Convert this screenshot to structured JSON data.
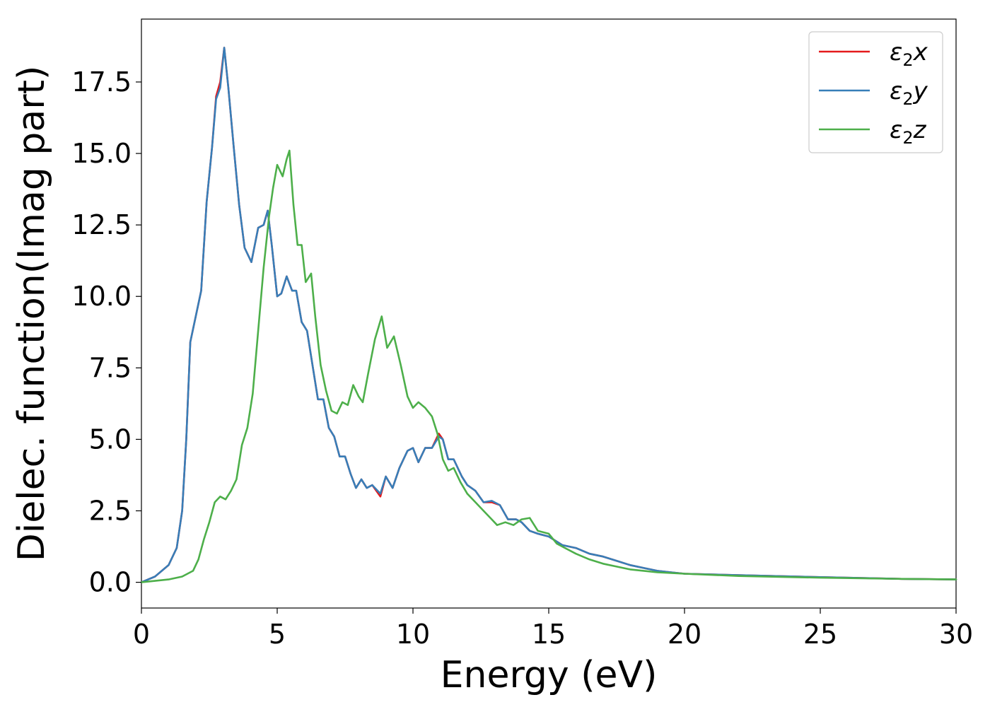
{
  "chart_data": {
    "type": "line",
    "title": "",
    "xlabel": "Energy (eV)",
    "ylabel": "Dielec. function(Imag part)",
    "xlim": [
      0,
      30
    ],
    "ylim": [
      -0.9,
      19.7
    ],
    "x_ticks": [
      "0",
      "5",
      "10",
      "15",
      "20",
      "25",
      "30"
    ],
    "y_ticks": [
      "0.0",
      "2.5",
      "5.0",
      "7.5",
      "10.0",
      "12.5",
      "15.0",
      "17.5"
    ],
    "grid": false,
    "legend_position": "top-right",
    "series": [
      {
        "name": "ε₂x",
        "legend_base": "ε",
        "legend_sub": "2",
        "legend_axis": "x",
        "color": "#e41a1c",
        "points": [
          [
            0,
            0
          ],
          [
            0.5,
            0.2
          ],
          [
            1.0,
            0.6
          ],
          [
            1.3,
            1.2
          ],
          [
            1.5,
            2.5
          ],
          [
            1.65,
            5.0
          ],
          [
            1.8,
            8.4
          ],
          [
            2.0,
            9.3
          ],
          [
            2.2,
            10.2
          ],
          [
            2.4,
            13.3
          ],
          [
            2.6,
            15.2
          ],
          [
            2.75,
            17.0
          ],
          [
            2.9,
            17.5
          ],
          [
            3.05,
            18.7
          ],
          [
            3.2,
            17.3
          ],
          [
            3.4,
            15.2
          ],
          [
            3.6,
            13.2
          ],
          [
            3.8,
            11.7
          ],
          [
            4.05,
            11.2
          ],
          [
            4.3,
            12.4
          ],
          [
            4.5,
            12.5
          ],
          [
            4.65,
            13.0
          ],
          [
            4.8,
            11.8
          ],
          [
            5.0,
            10.0
          ],
          [
            5.15,
            10.1
          ],
          [
            5.35,
            10.7
          ],
          [
            5.55,
            10.2
          ],
          [
            5.7,
            10.2
          ],
          [
            5.9,
            9.1
          ],
          [
            6.1,
            8.8
          ],
          [
            6.3,
            7.6
          ],
          [
            6.5,
            6.4
          ],
          [
            6.7,
            6.4
          ],
          [
            6.9,
            5.4
          ],
          [
            7.1,
            5.1
          ],
          [
            7.3,
            4.4
          ],
          [
            7.5,
            4.4
          ],
          [
            7.7,
            3.8
          ],
          [
            7.9,
            3.3
          ],
          [
            8.1,
            3.6
          ],
          [
            8.3,
            3.3
          ],
          [
            8.5,
            3.4
          ],
          [
            8.8,
            3.0
          ],
          [
            9.0,
            3.7
          ],
          [
            9.25,
            3.3
          ],
          [
            9.5,
            4.0
          ],
          [
            9.8,
            4.6
          ],
          [
            10.0,
            4.7
          ],
          [
            10.2,
            4.2
          ],
          [
            10.45,
            4.7
          ],
          [
            10.7,
            4.7
          ],
          [
            10.95,
            5.2
          ],
          [
            11.1,
            5.0
          ],
          [
            11.3,
            4.3
          ],
          [
            11.5,
            4.3
          ],
          [
            11.8,
            3.7
          ],
          [
            12.0,
            3.4
          ],
          [
            12.3,
            3.2
          ],
          [
            12.6,
            2.8
          ],
          [
            12.9,
            2.8
          ],
          [
            13.2,
            2.7
          ],
          [
            13.5,
            2.2
          ],
          [
            13.8,
            2.2
          ],
          [
            14.0,
            2.1
          ],
          [
            14.3,
            1.8
          ],
          [
            14.6,
            1.7
          ],
          [
            15.0,
            1.6
          ],
          [
            15.5,
            1.3
          ],
          [
            16.0,
            1.2
          ],
          [
            16.5,
            1.0
          ],
          [
            17.0,
            0.9
          ],
          [
            17.5,
            0.75
          ],
          [
            18.0,
            0.6
          ],
          [
            18.5,
            0.5
          ],
          [
            19.0,
            0.4
          ],
          [
            19.5,
            0.35
          ],
          [
            20,
            0.3
          ],
          [
            22,
            0.25
          ],
          [
            25,
            0.18
          ],
          [
            28,
            0.12
          ],
          [
            30,
            0.1
          ]
        ]
      },
      {
        "name": "ε₂y",
        "legend_base": "ε",
        "legend_sub": "2",
        "legend_axis": "y",
        "color": "#377eb8",
        "points": [
          [
            0,
            0
          ],
          [
            0.5,
            0.2
          ],
          [
            1.0,
            0.6
          ],
          [
            1.3,
            1.2
          ],
          [
            1.5,
            2.5
          ],
          [
            1.65,
            5.0
          ],
          [
            1.8,
            8.4
          ],
          [
            2.0,
            9.3
          ],
          [
            2.2,
            10.2
          ],
          [
            2.4,
            13.3
          ],
          [
            2.6,
            15.2
          ],
          [
            2.75,
            16.9
          ],
          [
            2.9,
            17.3
          ],
          [
            3.05,
            18.7
          ],
          [
            3.2,
            17.3
          ],
          [
            3.4,
            15.2
          ],
          [
            3.6,
            13.2
          ],
          [
            3.8,
            11.7
          ],
          [
            4.05,
            11.2
          ],
          [
            4.3,
            12.4
          ],
          [
            4.5,
            12.5
          ],
          [
            4.65,
            13.0
          ],
          [
            4.8,
            11.8
          ],
          [
            5.0,
            10.0
          ],
          [
            5.15,
            10.1
          ],
          [
            5.35,
            10.7
          ],
          [
            5.55,
            10.2
          ],
          [
            5.7,
            10.2
          ],
          [
            5.9,
            9.1
          ],
          [
            6.1,
            8.8
          ],
          [
            6.3,
            7.6
          ],
          [
            6.5,
            6.4
          ],
          [
            6.7,
            6.4
          ],
          [
            6.9,
            5.4
          ],
          [
            7.1,
            5.1
          ],
          [
            7.3,
            4.4
          ],
          [
            7.5,
            4.4
          ],
          [
            7.7,
            3.8
          ],
          [
            7.9,
            3.3
          ],
          [
            8.1,
            3.6
          ],
          [
            8.3,
            3.3
          ],
          [
            8.5,
            3.4
          ],
          [
            8.8,
            3.1
          ],
          [
            9.0,
            3.7
          ],
          [
            9.25,
            3.3
          ],
          [
            9.5,
            4.0
          ],
          [
            9.8,
            4.6
          ],
          [
            10.0,
            4.7
          ],
          [
            10.2,
            4.2
          ],
          [
            10.45,
            4.7
          ],
          [
            10.7,
            4.7
          ],
          [
            10.95,
            5.1
          ],
          [
            11.1,
            5.0
          ],
          [
            11.3,
            4.3
          ],
          [
            11.5,
            4.3
          ],
          [
            11.8,
            3.7
          ],
          [
            12.0,
            3.4
          ],
          [
            12.3,
            3.2
          ],
          [
            12.6,
            2.8
          ],
          [
            12.9,
            2.85
          ],
          [
            13.2,
            2.7
          ],
          [
            13.5,
            2.2
          ],
          [
            13.8,
            2.2
          ],
          [
            14.0,
            2.1
          ],
          [
            14.3,
            1.8
          ],
          [
            14.6,
            1.7
          ],
          [
            15.0,
            1.6
          ],
          [
            15.5,
            1.3
          ],
          [
            16.0,
            1.2
          ],
          [
            16.5,
            1.0
          ],
          [
            17.0,
            0.9
          ],
          [
            17.5,
            0.75
          ],
          [
            18.0,
            0.6
          ],
          [
            18.5,
            0.5
          ],
          [
            19.0,
            0.4
          ],
          [
            19.5,
            0.35
          ],
          [
            20,
            0.3
          ],
          [
            22,
            0.25
          ],
          [
            25,
            0.18
          ],
          [
            28,
            0.12
          ],
          [
            30,
            0.1
          ]
        ]
      },
      {
        "name": "ε₂z",
        "legend_base": "ε",
        "legend_sub": "2",
        "legend_axis": "z",
        "color": "#4daf4a",
        "points": [
          [
            0,
            0
          ],
          [
            0.5,
            0.05
          ],
          [
            1.0,
            0.1
          ],
          [
            1.5,
            0.2
          ],
          [
            1.9,
            0.4
          ],
          [
            2.1,
            0.8
          ],
          [
            2.3,
            1.5
          ],
          [
            2.5,
            2.1
          ],
          [
            2.7,
            2.8
          ],
          [
            2.9,
            3.0
          ],
          [
            3.1,
            2.9
          ],
          [
            3.3,
            3.2
          ],
          [
            3.5,
            3.6
          ],
          [
            3.7,
            4.8
          ],
          [
            3.9,
            5.4
          ],
          [
            4.1,
            6.6
          ],
          [
            4.3,
            8.8
          ],
          [
            4.5,
            11.0
          ],
          [
            4.7,
            12.8
          ],
          [
            4.85,
            13.8
          ],
          [
            5.0,
            14.6
          ],
          [
            5.2,
            14.2
          ],
          [
            5.35,
            14.8
          ],
          [
            5.45,
            15.1
          ],
          [
            5.6,
            13.2
          ],
          [
            5.75,
            11.8
          ],
          [
            5.9,
            11.8
          ],
          [
            6.05,
            10.5
          ],
          [
            6.25,
            10.8
          ],
          [
            6.4,
            9.3
          ],
          [
            6.6,
            7.6
          ],
          [
            6.8,
            6.7
          ],
          [
            7.0,
            6.0
          ],
          [
            7.2,
            5.9
          ],
          [
            7.4,
            6.3
          ],
          [
            7.6,
            6.2
          ],
          [
            7.8,
            6.9
          ],
          [
            8.0,
            6.5
          ],
          [
            8.15,
            6.3
          ],
          [
            8.35,
            7.3
          ],
          [
            8.6,
            8.5
          ],
          [
            8.85,
            9.3
          ],
          [
            9.05,
            8.2
          ],
          [
            9.3,
            8.6
          ],
          [
            9.55,
            7.6
          ],
          [
            9.8,
            6.5
          ],
          [
            10.0,
            6.1
          ],
          [
            10.2,
            6.3
          ],
          [
            10.45,
            6.1
          ],
          [
            10.7,
            5.8
          ],
          [
            10.9,
            5.2
          ],
          [
            11.1,
            4.3
          ],
          [
            11.3,
            3.9
          ],
          [
            11.5,
            4.0
          ],
          [
            11.75,
            3.5
          ],
          [
            12.0,
            3.1
          ],
          [
            12.3,
            2.8
          ],
          [
            12.6,
            2.5
          ],
          [
            12.9,
            2.2
          ],
          [
            13.1,
            2.0
          ],
          [
            13.4,
            2.1
          ],
          [
            13.7,
            2.0
          ],
          [
            14.0,
            2.2
          ],
          [
            14.3,
            2.25
          ],
          [
            14.6,
            1.8
          ],
          [
            15.0,
            1.7
          ],
          [
            15.3,
            1.35
          ],
          [
            15.6,
            1.2
          ],
          [
            16.0,
            1.0
          ],
          [
            16.5,
            0.8
          ],
          [
            17.0,
            0.65
          ],
          [
            17.5,
            0.55
          ],
          [
            18.0,
            0.45
          ],
          [
            18.5,
            0.4
          ],
          [
            19.0,
            0.35
          ],
          [
            20,
            0.3
          ],
          [
            22,
            0.22
          ],
          [
            25,
            0.16
          ],
          [
            28,
            0.12
          ],
          [
            30,
            0.1
          ]
        ]
      }
    ]
  }
}
